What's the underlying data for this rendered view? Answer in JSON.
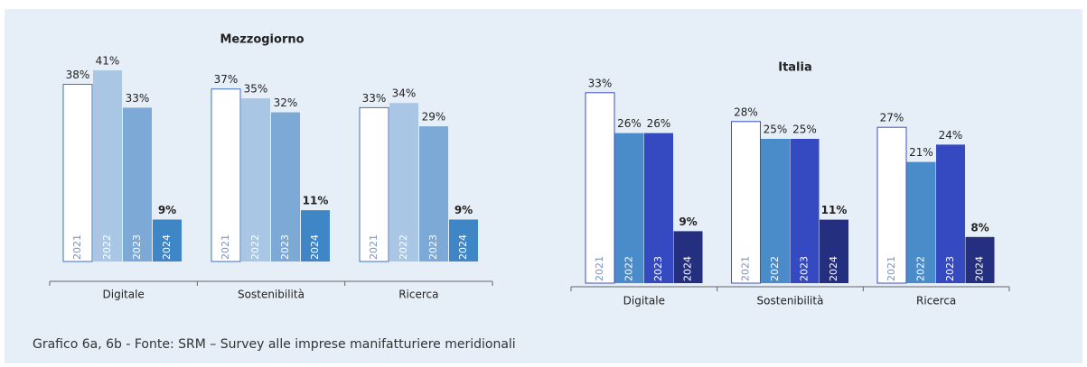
{
  "chart_data": [
    {
      "type": "bar",
      "title": "Mezzogiorno",
      "categories": [
        "Digitale",
        "Sostenibilità",
        "Ricerca"
      ],
      "series": [
        {
          "name": "2021",
          "color": "#ffffff",
          "edgecolor": "#3f6fc4",
          "values": [
            38,
            37,
            33
          ],
          "value_labels": [
            "38%",
            "37%",
            "33%"
          ]
        },
        {
          "name": "2022",
          "color": "#a9c6e4",
          "values": [
            41,
            35,
            34
          ],
          "value_labels": [
            "41%",
            "35%",
            "34%"
          ]
        },
        {
          "name": "2023",
          "color": "#7da9d7",
          "values": [
            33,
            32,
            29
          ],
          "value_labels": [
            "33%",
            "32%",
            "29%"
          ]
        },
        {
          "name": "2024",
          "color": "#3f86c7",
          "values": [
            9,
            11,
            9
          ],
          "value_labels": [
            "9%",
            "11%",
            "9%"
          ]
        }
      ]
    },
    {
      "type": "bar",
      "title": "Italia",
      "categories": [
        "Digitale",
        "Sostenibilità",
        "Ricerca"
      ],
      "series": [
        {
          "name": "2021",
          "color": "#ffffff",
          "edgecolor": "#3f4fc4",
          "values": [
            33,
            28,
            27
          ],
          "value_labels": [
            "33%",
            "28%",
            "27%"
          ]
        },
        {
          "name": "2022",
          "color": "#4a8bc9",
          "values": [
            26,
            25,
            21
          ],
          "value_labels": [
            "26%",
            "25%",
            "21%"
          ]
        },
        {
          "name": "2023",
          "color": "#3549c1",
          "values": [
            26,
            25,
            24
          ],
          "value_labels": [
            "26%",
            "25%",
            "24%"
          ]
        },
        {
          "name": "2024",
          "color": "#252f7f",
          "values": [
            9,
            11,
            8
          ],
          "value_labels": [
            "9%",
            "11%",
            "8%"
          ]
        }
      ]
    }
  ],
  "caption": "Grafico 6a, 6b - Fonte: SRM – Survey alle imprese manifatturiere meridionali"
}
